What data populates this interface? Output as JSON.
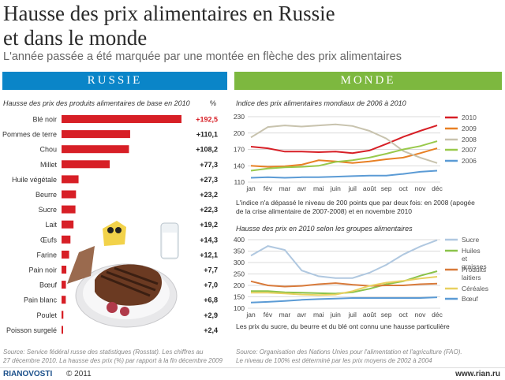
{
  "header": {
    "title_line1": "Hausse des prix alimentaires en Russie",
    "title_line2": "et dans le monde",
    "subtitle": "L'année passée a été marquée par une montée en flèche des prix alimentaires"
  },
  "banners": {
    "russia": "RUSSIE",
    "world": "MONDE"
  },
  "colors": {
    "russia_blue": "#0a85c8",
    "world_green": "#7db83f",
    "bar_red": "#d71f26"
  },
  "russia": {
    "label": "Hausse des prix des produits alimentaires de base en 2010",
    "unit": "%",
    "source_line1": "Source: Service fédéral russe des statistiques (Rosstat). Les chiffres au",
    "source_line2": "27 décembre 2010. La hausse des prix (%) par rapport à la fin décembre 2009"
  },
  "world": {
    "chart1_label": "Indice des prix alimentaires mondiaux de 2006 à 2010",
    "note1_line1": "L'indice n'a dépassé le niveau de 200 points que par deux fois: en 2008 (apogée",
    "note1_line2": "de la crise alimentaire de 2007-2008) et en novembre 2010",
    "chart2_label": "Hausse des prix en 2010 selon les groupes alimentaires",
    "note2": "Les prix du sucre, du beurre et du blé ont connu une hausse particulière",
    "source_line1": "Source: Organisation des Nations Unies pour l'alimentation et l'agriculture (FAO).",
    "source_line2": "Le niveau de 100% est déterminé par les prix moyens de 2002 à 2004"
  },
  "footer": {
    "logo": "RIANOVOSTI",
    "copyright": "© 2011",
    "url": "www.rian.ru"
  },
  "chart_data": [
    {
      "type": "bar",
      "categories": [
        "Blé noir",
        "Pommes de terre",
        "Chou",
        "Millet",
        "Huile végétale",
        "Beurre",
        "Sucre",
        "Lait",
        "Œufs",
        "Farine",
        "Pain noir",
        "Bœuf",
        "Pain blanc",
        "Poulet",
        "Poisson surgelé"
      ],
      "values": [
        192.5,
        110.1,
        108.2,
        77.3,
        27.3,
        23.2,
        22.3,
        19.2,
        14.3,
        12.1,
        7.7,
        7.0,
        6.8,
        2.9,
        2.4
      ],
      "value_labels": [
        "+192,5",
        "+110,1",
        "+108,2",
        "+77,3",
        "+27,3",
        "+23,2",
        "+22,3",
        "+19,2",
        "+14,3",
        "+12,1",
        "+7,7",
        "+7,0",
        "+6,8",
        "+2,9",
        "+2,4"
      ],
      "title": "Hausse des prix des produits alimentaires de base en 2010",
      "ylabel": "%"
    },
    {
      "type": "line",
      "title": "Indice des prix alimentaires mondiaux de 2006 à 2010",
      "categories": [
        "jan",
        "fév",
        "mar",
        "avr",
        "mai",
        "juin",
        "juil",
        "août",
        "sep",
        "oct",
        "nov",
        "déc"
      ],
      "ylim": [
        110,
        230
      ],
      "yticks": [
        110,
        140,
        170,
        200,
        230
      ],
      "grid": true,
      "legend": "right",
      "series": [
        {
          "name": "2010",
          "color": "#d71f26",
          "values": [
            175,
            172,
            166,
            166,
            165,
            166,
            163,
            168,
            180,
            193,
            204,
            214
          ]
        },
        {
          "name": "2009",
          "color": "#e88024",
          "values": [
            140,
            138,
            139,
            142,
            150,
            148,
            145,
            148,
            152,
            155,
            163,
            172
          ]
        },
        {
          "name": "2008",
          "color": "#c8c3ae",
          "values": [
            192,
            211,
            214,
            212,
            214,
            216,
            213,
            204,
            190,
            167,
            155,
            145
          ]
        },
        {
          "name": "2007",
          "color": "#99c94b",
          "values": [
            131,
            135,
            137,
            138,
            140,
            147,
            150,
            155,
            162,
            170,
            176,
            185
          ]
        },
        {
          "name": "2006",
          "color": "#5b9bd5",
          "values": [
            118,
            119,
            118,
            119,
            119,
            120,
            121,
            122,
            122,
            125,
            129,
            131
          ]
        }
      ]
    },
    {
      "type": "line",
      "title": "Hausse des prix en 2010 selon les groupes alimentaires",
      "categories": [
        "jan",
        "fév",
        "mar",
        "avr",
        "mai",
        "juin",
        "juil",
        "août",
        "sep",
        "oct",
        "nov",
        "déc"
      ],
      "ylim": [
        100,
        400
      ],
      "yticks": [
        100,
        150,
        200,
        250,
        300,
        350,
        400
      ],
      "grid": true,
      "legend": "right",
      "series": [
        {
          "name": "Sucre",
          "color": "#b0c8e0",
          "values": [
            330,
            372,
            355,
            265,
            240,
            232,
            232,
            255,
            290,
            335,
            370,
            398
          ]
        },
        {
          "name": "Huiles et graisses",
          "color": "#8bc34a",
          "values": [
            175,
            175,
            170,
            168,
            166,
            164,
            170,
            185,
            205,
            218,
            242,
            262
          ]
        },
        {
          "name": "Produits laitiers",
          "color": "#d87a3a",
          "values": [
            218,
            200,
            195,
            198,
            205,
            210,
            203,
            198,
            200,
            200,
            205,
            208
          ]
        },
        {
          "name": "Céréales",
          "color": "#e8d060",
          "values": [
            168,
            168,
            165,
            160,
            158,
            160,
            175,
            198,
            212,
            220,
            230,
            238
          ]
        },
        {
          "name": "Bœuf",
          "color": "#5b9bd5",
          "values": [
            125,
            128,
            132,
            137,
            140,
            142,
            145,
            145,
            145,
            145,
            145,
            148
          ]
        }
      ]
    }
  ]
}
